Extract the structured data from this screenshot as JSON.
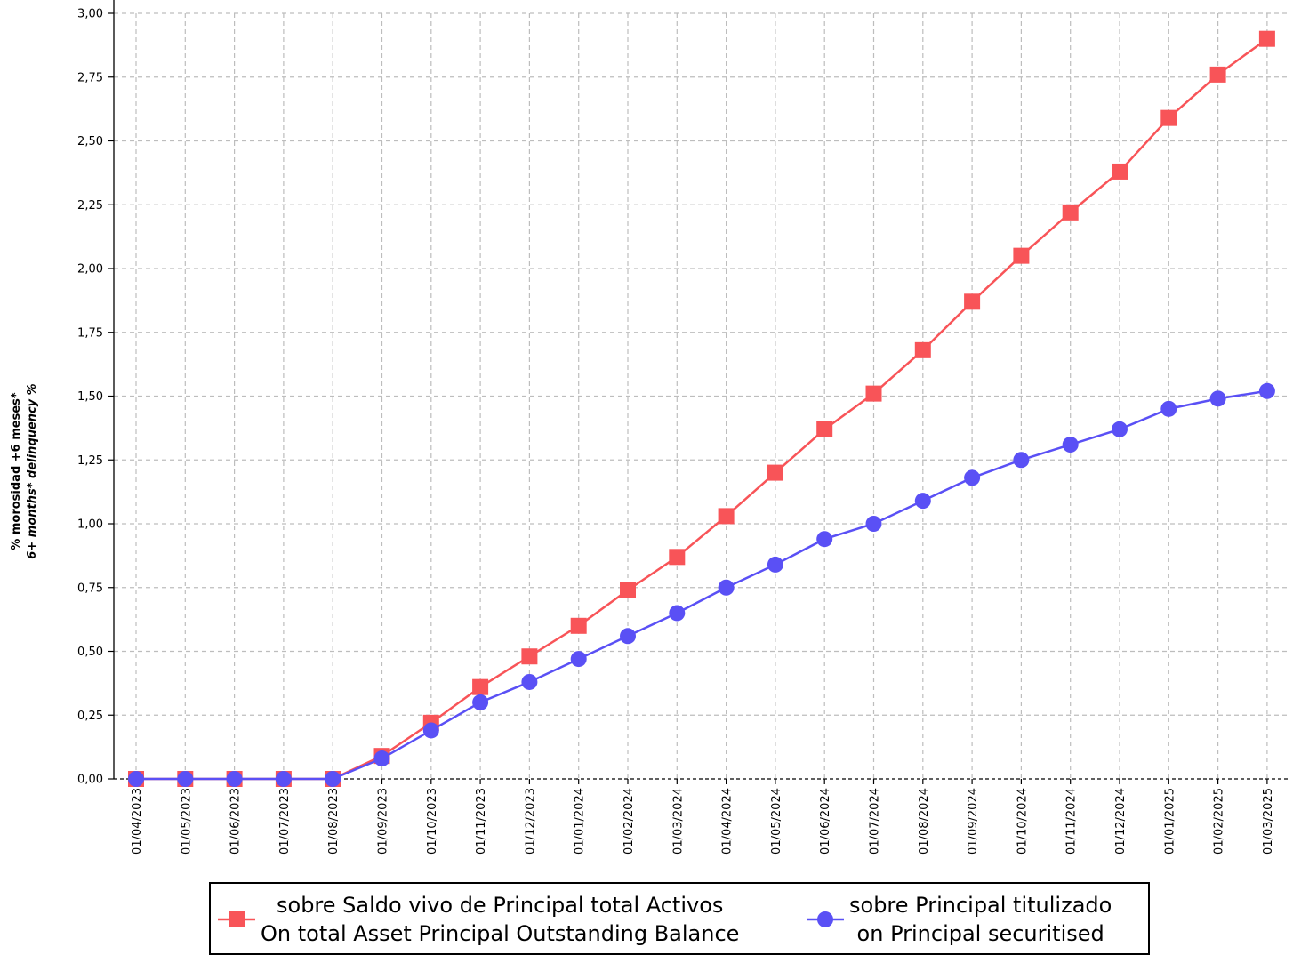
{
  "chart_data": {
    "type": "line",
    "ylabel": [
      "% morosidad +6 meses*",
      "6+ months* delinquency %"
    ],
    "xlabel": "",
    "ylim": [
      0,
      3.0
    ],
    "yticks": [
      0,
      0.25,
      0.5,
      0.75,
      1.0,
      1.25,
      1.5,
      1.75,
      2.0,
      2.25,
      2.5,
      2.75,
      3.0
    ],
    "ytick_labels": [
      "0,00",
      "0,25",
      "0,50",
      "0,75",
      "1,00",
      "1,25",
      "1,50",
      "1,75",
      "2,00",
      "2,25",
      "2,50",
      "2,75",
      "3,00"
    ],
    "grid": true,
    "legend_position": "bottom",
    "categories": [
      "01/04/2023",
      "01/05/2023",
      "01/06/2023",
      "01/07/2023",
      "01/08/2023",
      "01/09/2023",
      "01/10/2023",
      "01/11/2023",
      "01/12/2023",
      "01/01/2024",
      "01/02/2024",
      "01/03/2024",
      "01/04/2024",
      "01/05/2024",
      "01/06/2024",
      "01/07/2024",
      "01/08/2024",
      "01/09/2024",
      "01/10/2024",
      "01/11/2024",
      "01/12/2024",
      "01/01/2025",
      "01/02/2025",
      "01/03/2025"
    ],
    "series": [
      {
        "name": [
          "sobre Saldo vivo de Principal total Activos",
          "On total Asset Principal Outstanding Balance"
        ],
        "color": "#f85458",
        "marker": "square",
        "values": [
          0.0,
          0.0,
          0.0,
          0.0,
          0.0,
          0.09,
          0.22,
          0.36,
          0.48,
          0.6,
          0.74,
          0.87,
          1.03,
          1.2,
          1.37,
          1.51,
          1.68,
          1.87,
          2.05,
          2.22,
          2.38,
          2.59,
          2.76,
          2.9
        ]
      },
      {
        "name": [
          "sobre Principal titulizado",
          "on Principal securitised"
        ],
        "color": "#5a50f5",
        "marker": "circle",
        "values": [
          0.0,
          0.0,
          0.0,
          0.0,
          0.0,
          0.08,
          0.19,
          0.3,
          0.38,
          0.47,
          0.56,
          0.65,
          0.75,
          0.84,
          0.94,
          1.0,
          1.09,
          1.18,
          1.25,
          1.31,
          1.37,
          1.45,
          1.49,
          1.52
        ]
      }
    ]
  }
}
